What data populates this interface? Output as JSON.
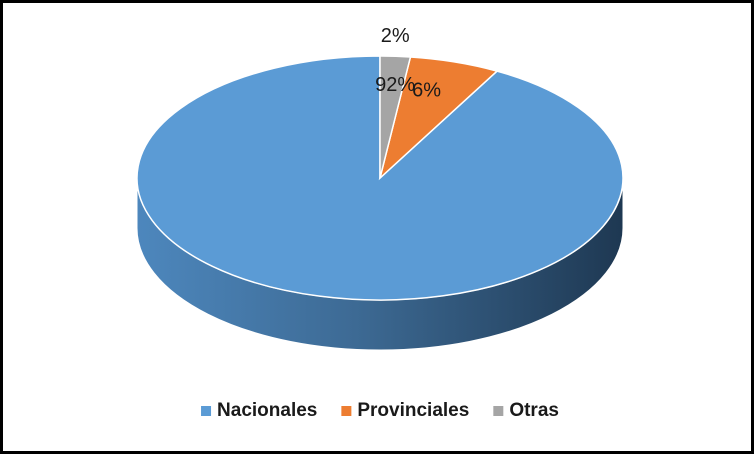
{
  "chart_data": {
    "type": "pie",
    "title": "",
    "style": "3d",
    "categories": [
      "Nacionales",
      "Provinciales",
      "Otras"
    ],
    "values": [
      92,
      6,
      2
    ],
    "data_labels": [
      "92%",
      "6%",
      "2%"
    ],
    "colors": [
      "#5b9bd5",
      "#ed7d31",
      "#a5a5a5"
    ],
    "legend_position": "bottom",
    "legend": [
      "Nacionales",
      "Provinciales",
      "Otras"
    ]
  }
}
